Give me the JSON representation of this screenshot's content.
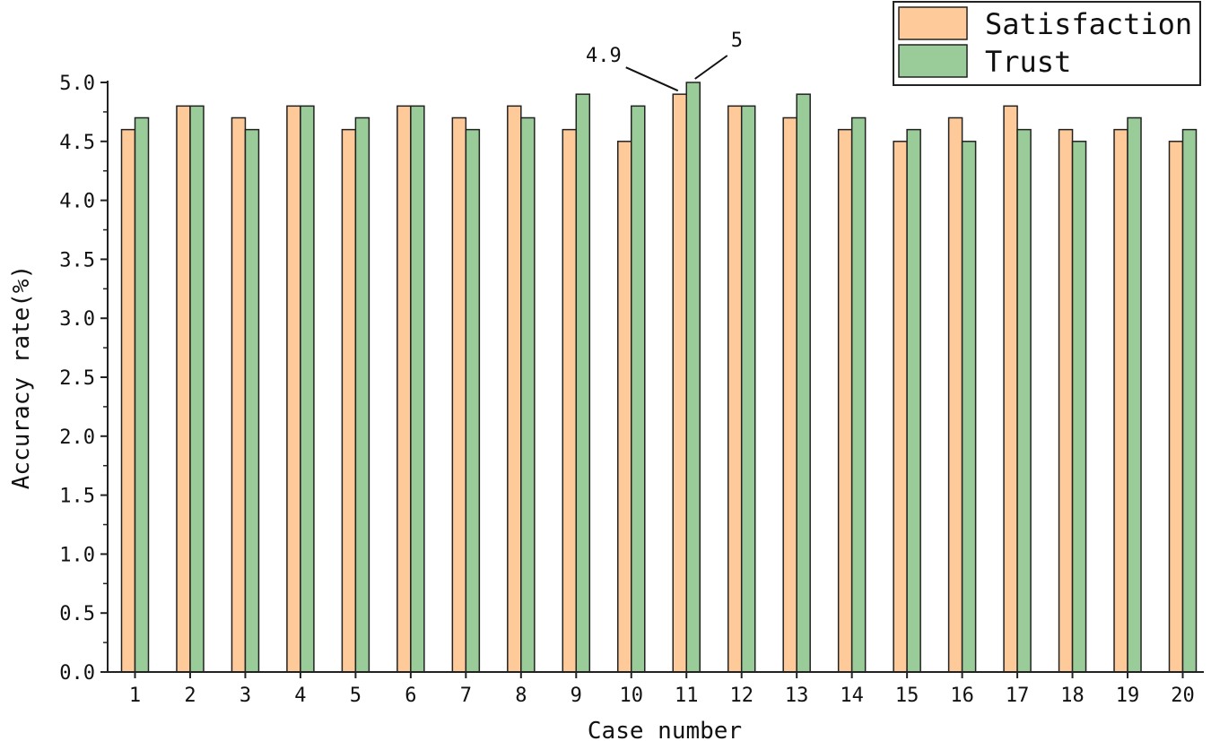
{
  "chart_data": {
    "type": "bar",
    "xlabel": "Case number",
    "ylabel": "Accuracy rate(%)",
    "ylim": [
      0,
      5.0
    ],
    "yticks": [
      "0.0",
      "0.5",
      "1.0",
      "1.5",
      "2.0",
      "2.5",
      "3.0",
      "3.5",
      "4.0",
      "4.5",
      "5.0"
    ],
    "categories": [
      "1",
      "2",
      "3",
      "4",
      "5",
      "6",
      "7",
      "8",
      "9",
      "10",
      "11",
      "12",
      "13",
      "14",
      "15",
      "16",
      "17",
      "18",
      "19",
      "20"
    ],
    "series": [
      {
        "name": "Satisfaction",
        "color": "#FFCA99",
        "values": [
          4.6,
          4.8,
          4.7,
          4.8,
          4.6,
          4.8,
          4.7,
          4.8,
          4.6,
          4.5,
          4.9,
          4.8,
          4.7,
          4.6,
          4.5,
          4.7,
          4.8,
          4.6,
          4.6,
          4.5
        ]
      },
      {
        "name": "Trust",
        "color": "#99CC99",
        "values": [
          4.7,
          4.8,
          4.6,
          4.8,
          4.7,
          4.8,
          4.6,
          4.7,
          4.9,
          4.8,
          5.0,
          4.8,
          4.9,
          4.7,
          4.6,
          4.5,
          4.6,
          4.5,
          4.7,
          4.6
        ]
      }
    ],
    "annotations": [
      {
        "text": "4.9",
        "series": 0,
        "category": "11"
      },
      {
        "text": "5",
        "series": 1,
        "category": "11"
      }
    ],
    "legend": {
      "position": "top-right"
    },
    "grid": false
  }
}
